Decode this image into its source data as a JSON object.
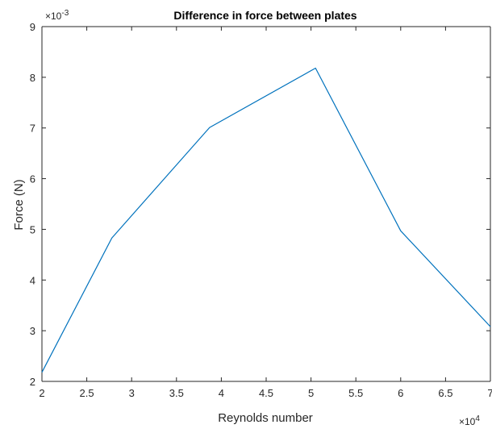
{
  "chart_data": {
    "type": "line",
    "title": "Difference in force between plates",
    "xlabel": "Reynolds number",
    "ylabel": "Force (N)",
    "x_multiplier": {
      "base": "×10",
      "exponent": "4"
    },
    "y_multiplier": {
      "base": "×10",
      "exponent": "-3"
    },
    "xlim": [
      2,
      7
    ],
    "ylim": [
      2,
      9
    ],
    "xticks": [
      2,
      2.5,
      3,
      3.5,
      4,
      4.5,
      5,
      5.5,
      6,
      6.5,
      7
    ],
    "xtick_labels": [
      "2",
      "2.5",
      "3",
      "3.5",
      "4",
      "4.5",
      "5",
      "5.5",
      "6",
      "6.5",
      "7"
    ],
    "yticks": [
      2,
      3,
      4,
      5,
      6,
      7,
      8,
      9
    ],
    "ytick_labels": [
      "2",
      "3",
      "4",
      "5",
      "6",
      "7",
      "8",
      "9"
    ],
    "grid": false,
    "series": [
      {
        "x": [
          2.0,
          2.78,
          3.87,
          5.05,
          6.0,
          7.0
        ],
        "y": [
          2.18,
          4.83,
          7.01,
          8.18,
          4.97,
          3.08
        ],
        "color": "#0072BD"
      }
    ]
  }
}
